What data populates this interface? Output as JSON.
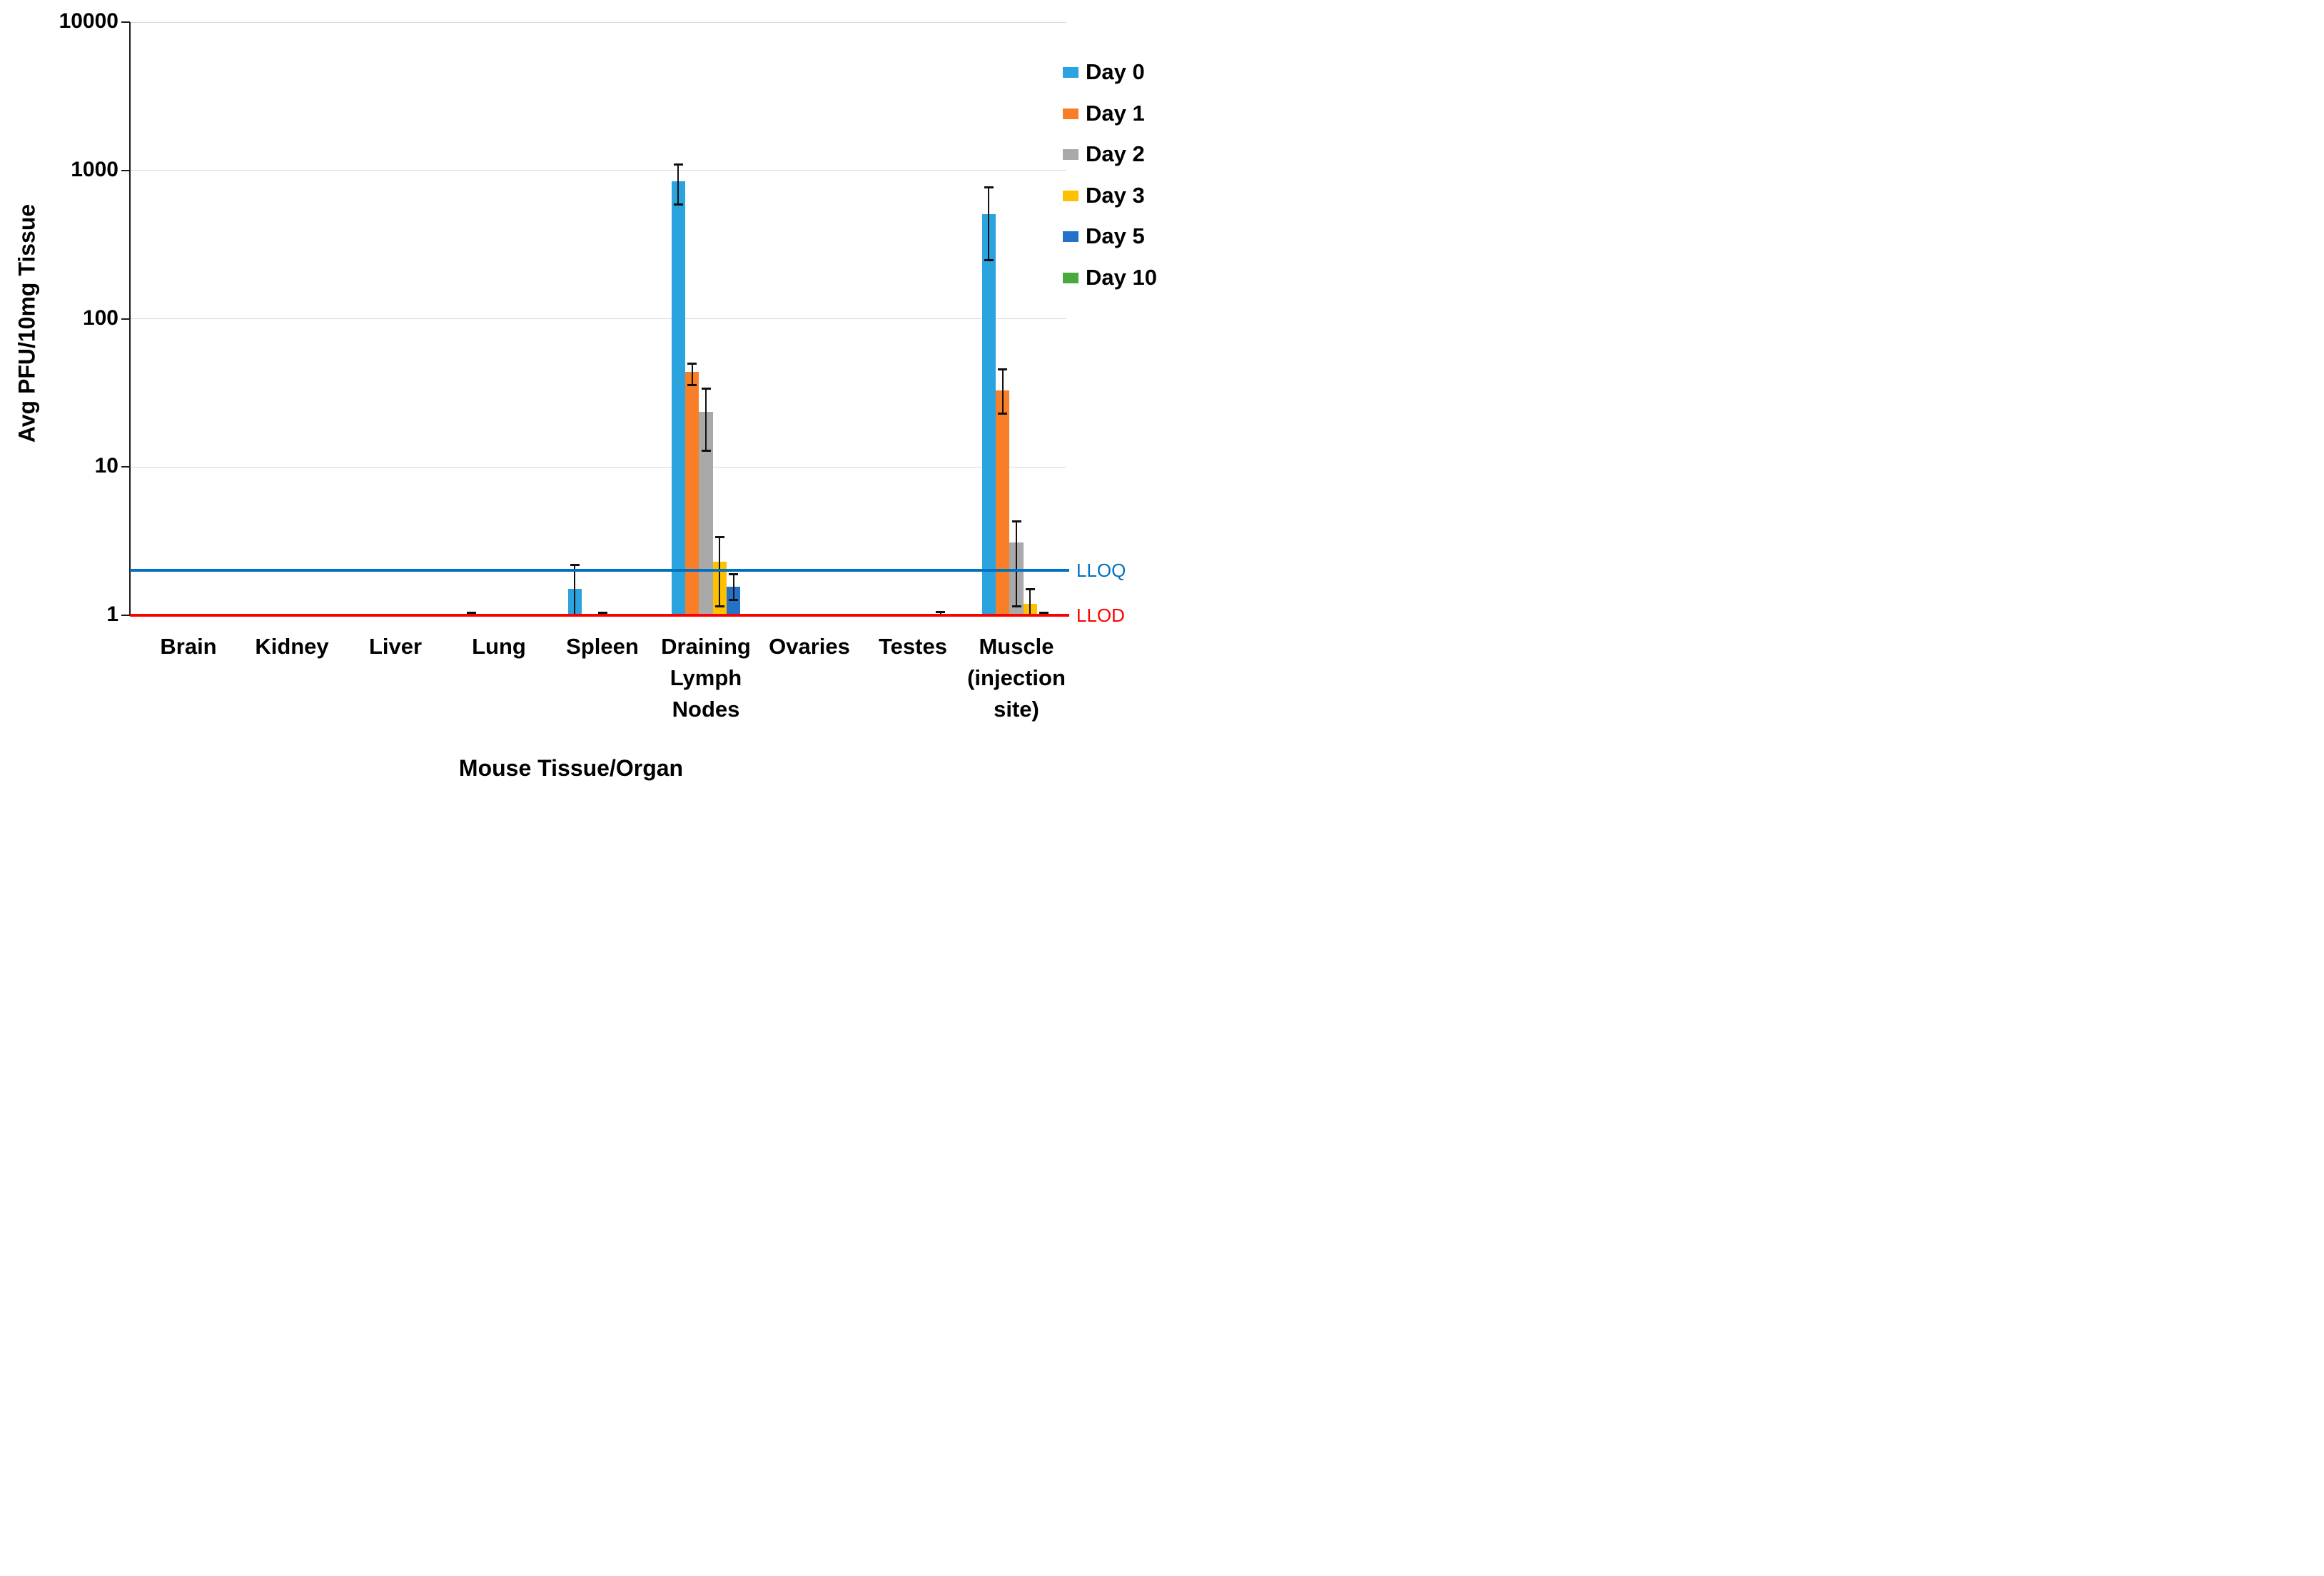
{
  "figure_background": "#FFFFFF",
  "chart_data": {
    "type": "bar",
    "title": "",
    "xlabel": "Mouse Tissue/Organ",
    "ylabel": "Avg PFU/10mg Tissue",
    "y_scale": "log10",
    "ylim": [
      1,
      10000
    ],
    "y_ticks": [
      1,
      10,
      100,
      1000,
      10000
    ],
    "y_tick_labels": [
      "1",
      "10",
      "100",
      "1000",
      "10000"
    ],
    "grid": "horizontal",
    "legend_position": "top-right",
    "categories": [
      "Brain",
      "Kidney",
      "Liver",
      "Lung",
      "Spleen",
      "Draining Lymph Nodes",
      "Ovaries",
      "Testes",
      "Muscle (injection site)"
    ],
    "category_label_lines": [
      [
        "Brain"
      ],
      [
        "Kidney"
      ],
      [
        "Liver"
      ],
      [
        "Lung"
      ],
      [
        "Spleen"
      ],
      [
        "Draining",
        "Lymph",
        "Nodes"
      ],
      [
        "Ovaries"
      ],
      [
        "Testes"
      ],
      [
        "Muscle",
        "(injection",
        "site)"
      ]
    ],
    "series": [
      {
        "name": "Day 0",
        "color": "#2AA3DE",
        "values": [
          null,
          null,
          null,
          1.0,
          1.5,
          840,
          null,
          null,
          510
        ],
        "err_lo": [
          null,
          null,
          null,
          null,
          1.0,
          590,
          null,
          null,
          250
        ],
        "err_hi": [
          null,
          null,
          null,
          1.05,
          2.2,
          1100,
          null,
          null,
          775
        ]
      },
      {
        "name": "Day 1",
        "color": "#F87F28",
        "values": [
          null,
          null,
          null,
          null,
          null,
          44,
          null,
          1.0,
          33
        ],
        "err_lo": [
          null,
          null,
          null,
          null,
          null,
          36,
          null,
          null,
          23
        ],
        "err_hi": [
          null,
          null,
          null,
          null,
          null,
          50,
          null,
          null,
          46
        ]
      },
      {
        "name": "Day 2",
        "color": "#A9A9A9",
        "values": [
          null,
          null,
          null,
          null,
          1.0,
          23.5,
          null,
          1.0,
          3.1
        ],
        "err_lo": [
          null,
          null,
          null,
          null,
          null,
          13,
          null,
          null,
          1.15
        ],
        "err_hi": [
          null,
          null,
          null,
          null,
          1.05,
          34,
          null,
          null,
          4.3
        ]
      },
      {
        "name": "Day 3",
        "color": "#FFC000",
        "values": [
          null,
          null,
          null,
          null,
          null,
          2.3,
          null,
          null,
          1.2
        ],
        "err_lo": [
          null,
          null,
          null,
          null,
          null,
          1.15,
          null,
          null,
          null
        ],
        "err_hi": [
          null,
          null,
          null,
          null,
          null,
          3.4,
          null,
          null,
          1.5
        ]
      },
      {
        "name": "Day 5",
        "color": "#2372C8",
        "values": [
          null,
          null,
          null,
          null,
          null,
          1.55,
          null,
          1.0,
          1.0
        ],
        "err_lo": [
          null,
          null,
          null,
          null,
          null,
          1.27,
          null,
          null,
          null
        ],
        "err_hi": [
          null,
          null,
          null,
          null,
          null,
          1.9,
          null,
          1.06,
          1.05
        ]
      },
      {
        "name": "Day 10",
        "color": "#4AA93C",
        "values": [
          null,
          null,
          null,
          null,
          null,
          null,
          null,
          null,
          null
        ],
        "err_lo": [
          null,
          null,
          null,
          null,
          null,
          null,
          null,
          null,
          null
        ],
        "err_hi": [
          null,
          null,
          null,
          null,
          null,
          null,
          null,
          null,
          null
        ]
      }
    ],
    "reference_lines": [
      {
        "label": "LLOQ",
        "value": 2,
        "color": "#0070C0"
      },
      {
        "label": "LLOD",
        "value": 1,
        "color": "#FF0000"
      }
    ],
    "axis_color": "#1A1A1A",
    "gridline_color": "#D9D9D9",
    "error_bar_color": "#111111"
  }
}
